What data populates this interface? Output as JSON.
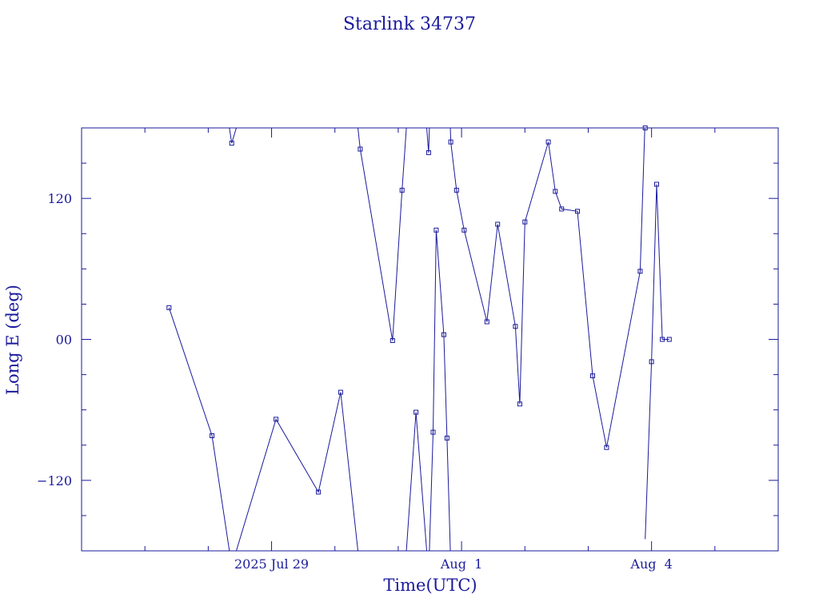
{
  "chart_data": {
    "type": "line",
    "title": "Starlink 34737",
    "xlabel": "Time(UTC)",
    "ylabel": "Long E (deg)",
    "x_tick_labels": [
      "2025 Jul 29",
      "Aug  1",
      "Aug  4"
    ],
    "y_tick_labels": [
      "−120",
      "00",
      "120"
    ],
    "x_unit": "days since 2025 Jul 26 00:00 UTC",
    "xlim": [
      0,
      11.0
    ],
    "ylim": [
      -180,
      180
    ],
    "y_tick_values": [
      -120,
      0,
      120
    ],
    "x_major_ticks": [
      3,
      6,
      9
    ],
    "x_minor_step": 1,
    "y_minor_step": 30,
    "grid": false,
    "legend": "none",
    "series": [
      {
        "color": "#1a1a9c",
        "wrap_period": 360,
        "x": [
          1.38,
          2.06,
          2.37,
          3.07,
          3.74,
          4.09,
          4.4,
          4.91,
          5.06,
          5.28,
          5.48,
          5.55,
          5.6,
          5.72,
          5.77,
          5.83,
          5.92,
          6.04,
          6.4,
          6.57,
          6.85,
          6.92,
          7.0,
          7.37,
          7.48,
          7.58,
          7.83,
          8.07,
          8.29,
          8.82,
          8.9,
          9.0,
          9.08,
          9.17,
          9.28
        ],
        "y": [
          27,
          -82,
          167,
          -68,
          -130,
          -45,
          162,
          -1,
          127,
          -62,
          159,
          -79,
          93,
          4,
          -84,
          168,
          127,
          93,
          15,
          98,
          11,
          -55,
          100,
          168,
          126,
          111,
          109,
          -31,
          -92,
          58,
          190,
          -19,
          132,
          0,
          0
        ]
      }
    ]
  }
}
